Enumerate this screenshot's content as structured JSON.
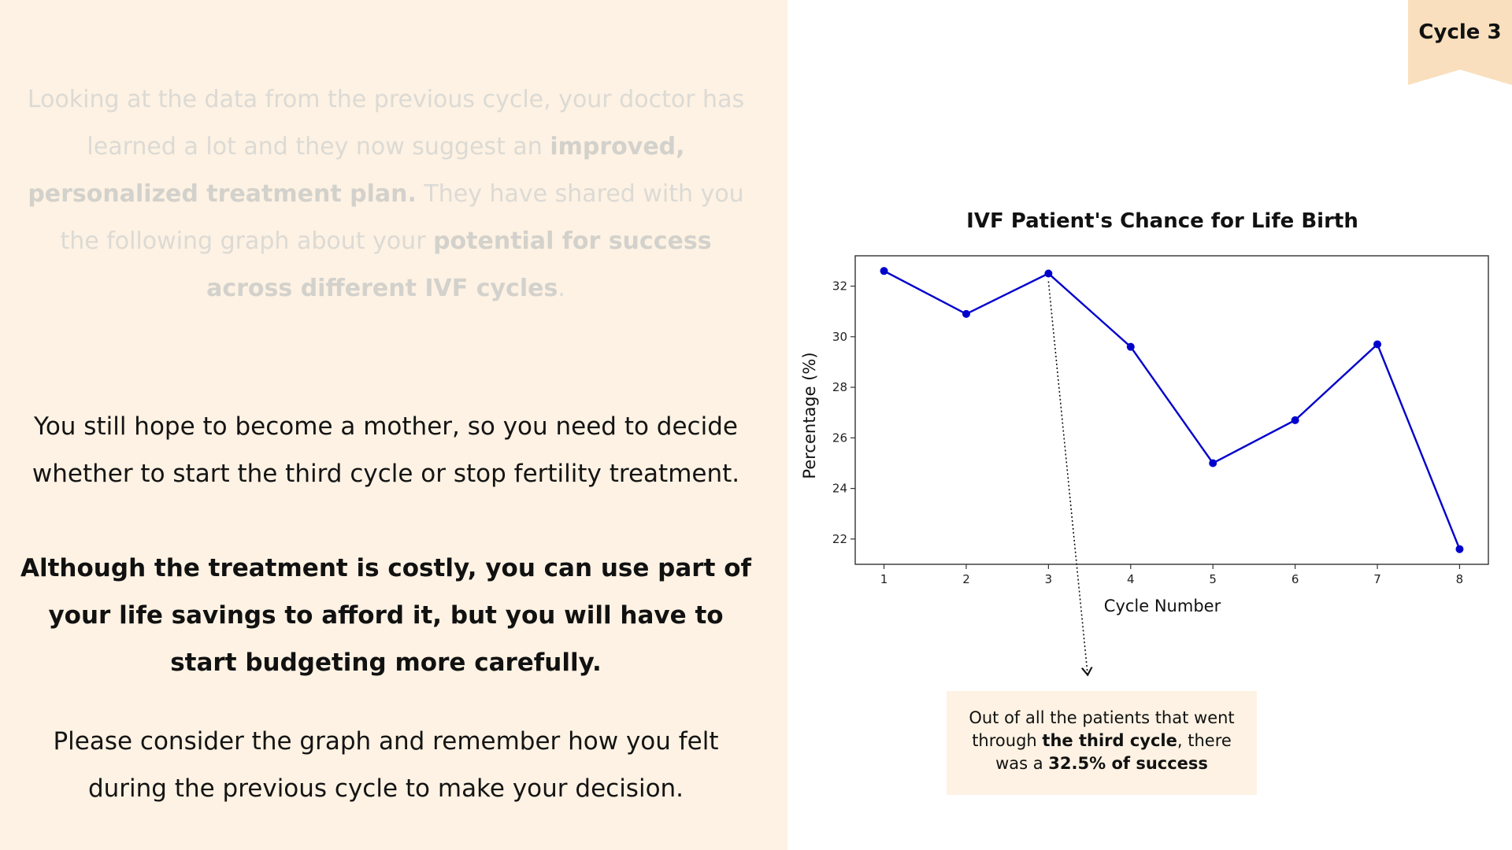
{
  "ribbon": {
    "label": "Cycle 3"
  },
  "intro": {
    "t1": "Looking at the data from the previous cycle, your doctor has learned a lot and they now suggest an ",
    "b1": "improved, personalized treatment plan.",
    "t2": " They have shared with you the following graph about your ",
    "b2": "potential for success across different IVF cycles",
    "t3": "."
  },
  "paragraphs": {
    "decision": "You still hope to become a mother, so you need to decide whether to start the third cycle or stop fertility treatment.",
    "cost": "Although the treatment is costly, you can use part of your life savings to afford it, but you will have to start budgeting more carefully.",
    "consider": "Please consider the graph and remember how you felt during the previous cycle to make your decision."
  },
  "chart_data": {
    "type": "line",
    "title": "IVF Patient's Chance for Life Birth",
    "xlabel": "Cycle Number",
    "ylabel": "Percentage (%)",
    "x": [
      1,
      2,
      3,
      4,
      5,
      6,
      7,
      8
    ],
    "series": [
      {
        "values": [
          32.6,
          30.9,
          32.5,
          29.6,
          25.0,
          26.7,
          29.7,
          21.6
        ],
        "color": "#0000cc"
      }
    ],
    "xlim": [
      0.65,
      8.35
    ],
    "ylim": [
      21.0,
      33.2
    ],
    "yticks": [
      22,
      24,
      26,
      28,
      30,
      32
    ],
    "grid": false,
    "annotation": {
      "target_x": 3
    }
  },
  "annotation": {
    "t1": "Out of all the patients that went through ",
    "b1": "the third cycle",
    "t2": ", there was a ",
    "b2": "32.5% of success"
  }
}
